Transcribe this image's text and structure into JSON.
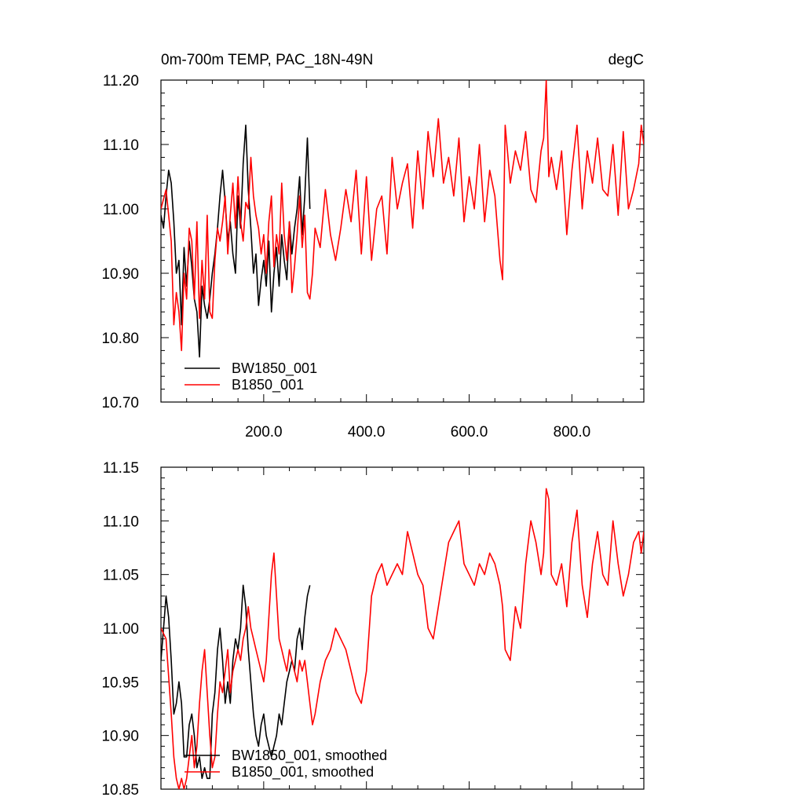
{
  "chart_data": [
    {
      "type": "line",
      "title": "0m-700m TEMP, PAC_18N-49N",
      "units": "degC",
      "xlim": [
        0,
        940
      ],
      "ylim": [
        10.7,
        11.2
      ],
      "xticks": [
        200,
        400,
        600,
        800
      ],
      "xtick_labels": [
        "200.0",
        "400.0",
        "600.0",
        "800.0"
      ],
      "yticks": [
        10.7,
        10.8,
        10.9,
        11.0,
        11.1,
        11.2
      ],
      "ytick_labels": [
        "10.70",
        "10.80",
        "10.90",
        "11.00",
        "11.10",
        "11.20"
      ],
      "legend_position": "bottom-left",
      "series": [
        {
          "name": "BW1850_001",
          "color": "#000000",
          "x": [
            0,
            5,
            10,
            15,
            20,
            25,
            30,
            35,
            40,
            45,
            50,
            55,
            60,
            65,
            70,
            75,
            80,
            85,
            90,
            95,
            100,
            105,
            110,
            115,
            120,
            125,
            130,
            135,
            140,
            145,
            150,
            155,
            160,
            165,
            170,
            175,
            180,
            185,
            190,
            195,
            200,
            205,
            210,
            215,
            220,
            225,
            230,
            235,
            240,
            245,
            250,
            255,
            260,
            265,
            270,
            275,
            280,
            285,
            290
          ],
          "values": [
            10.99,
            10.97,
            11.02,
            11.06,
            11.04,
            10.98,
            10.9,
            10.92,
            10.82,
            10.94,
            10.88,
            10.95,
            10.91,
            10.86,
            10.84,
            10.77,
            10.88,
            10.85,
            10.83,
            10.86,
            10.9,
            10.93,
            10.97,
            11.02,
            11.06,
            11.01,
            10.95,
            10.98,
            10.93,
            10.9,
            11.02,
            10.97,
            11.07,
            11.13,
            11.03,
            10.97,
            10.9,
            10.93,
            10.85,
            10.89,
            10.92,
            10.88,
            10.95,
            10.84,
            10.9,
            10.94,
            10.88,
            10.96,
            10.92,
            10.89,
            10.98,
            10.93,
            10.97,
            11.0,
            11.05,
            10.96,
            11.02,
            11.11,
            11.0
          ]
        },
        {
          "name": "B1850_001",
          "color": "#ff0000",
          "x": [
            0,
            10,
            20,
            25,
            30,
            35,
            40,
            45,
            50,
            55,
            60,
            65,
            70,
            75,
            80,
            85,
            90,
            95,
            100,
            105,
            110,
            115,
            120,
            125,
            130,
            135,
            140,
            145,
            150,
            155,
            160,
            165,
            170,
            175,
            180,
            185,
            190,
            195,
            200,
            205,
            210,
            215,
            220,
            225,
            230,
            235,
            240,
            245,
            250,
            255,
            260,
            265,
            270,
            275,
            280,
            285,
            290,
            295,
            300,
            310,
            320,
            330,
            340,
            350,
            360,
            370,
            380,
            390,
            400,
            410,
            420,
            430,
            440,
            450,
            460,
            470,
            480,
            490,
            500,
            510,
            520,
            530,
            540,
            550,
            560,
            570,
            580,
            590,
            600,
            610,
            620,
            630,
            640,
            650,
            660,
            665,
            670,
            680,
            690,
            700,
            710,
            720,
            730,
            740,
            745,
            750,
            755,
            760,
            770,
            780,
            790,
            800,
            810,
            820,
            830,
            840,
            850,
            860,
            870,
            880,
            890,
            900,
            910,
            920,
            930,
            935,
            940
          ],
          "values": [
            11.0,
            11.03,
            10.95,
            10.82,
            10.87,
            10.84,
            10.78,
            10.9,
            10.86,
            10.97,
            10.95,
            10.86,
            10.98,
            10.83,
            10.92,
            10.86,
            10.99,
            10.84,
            10.83,
            10.92,
            10.97,
            10.95,
            10.98,
            11.02,
            10.93,
            10.99,
            11.04,
            10.97,
            11.05,
            10.98,
            10.95,
            11.01,
            11.0,
            11.08,
            11.02,
            10.99,
            10.97,
            10.93,
            10.96,
            10.9,
            10.98,
            11.02,
            10.91,
            10.96,
            10.93,
            11.04,
            10.96,
            10.92,
            10.98,
            10.87,
            10.91,
            10.96,
            11.02,
            10.94,
            10.99,
            10.87,
            10.86,
            10.9,
            10.97,
            10.94,
            11.03,
            10.96,
            10.92,
            10.97,
            11.03,
            10.98,
            11.06,
            10.93,
            11.05,
            10.92,
            11.0,
            11.02,
            10.93,
            11.08,
            11.0,
            11.04,
            11.07,
            10.97,
            11.09,
            11.0,
            11.12,
            11.05,
            11.14,
            11.04,
            11.08,
            11.02,
            11.11,
            10.98,
            11.05,
            11.0,
            11.1,
            10.98,
            11.06,
            11.02,
            10.92,
            10.89,
            11.13,
            11.04,
            11.09,
            11.06,
            11.12,
            11.03,
            11.01,
            11.09,
            11.11,
            11.2,
            11.05,
            11.08,
            11.03,
            11.09,
            10.96,
            11.06,
            11.13,
            11.0,
            11.09,
            11.04,
            11.11,
            11.03,
            11.02,
            11.1,
            10.99,
            11.12,
            11.0,
            11.03,
            11.07,
            11.13,
            11.1
          ]
        }
      ]
    },
    {
      "type": "line",
      "title": "",
      "xlim": [
        0,
        940
      ],
      "ylim": [
        10.85,
        11.15
      ],
      "xticks": [
        200,
        400,
        600,
        800
      ],
      "xtick_labels": [],
      "yticks": [
        10.85,
        10.9,
        10.95,
        11.0,
        11.05,
        11.1,
        11.15
      ],
      "ytick_labels": [
        "10.85",
        "10.90",
        "10.95",
        "11.00",
        "11.05",
        "11.10",
        "11.15"
      ],
      "legend_position": "bottom-left",
      "series": [
        {
          "name": "BW1850_001, smoothed",
          "color": "#000000",
          "x": [
            0,
            5,
            10,
            15,
            20,
            25,
            30,
            35,
            40,
            45,
            50,
            55,
            60,
            65,
            70,
            75,
            80,
            85,
            90,
            95,
            100,
            105,
            110,
            115,
            120,
            125,
            130,
            135,
            140,
            145,
            150,
            155,
            160,
            165,
            170,
            175,
            180,
            185,
            190,
            195,
            200,
            205,
            210,
            215,
            220,
            225,
            230,
            235,
            240,
            245,
            250,
            255,
            260,
            265,
            270,
            275,
            280,
            285,
            290
          ],
          "values": [
            10.97,
            11.0,
            11.03,
            11.01,
            10.97,
            10.92,
            10.93,
            10.95,
            10.93,
            10.88,
            10.88,
            10.91,
            10.92,
            10.9,
            10.87,
            10.88,
            10.86,
            10.87,
            10.86,
            10.86,
            10.92,
            10.94,
            10.98,
            11.0,
            10.97,
            10.93,
            10.95,
            10.93,
            10.97,
            10.99,
            10.98,
            11.0,
            11.04,
            11.02,
            10.98,
            10.95,
            10.92,
            10.9,
            10.89,
            10.91,
            10.92,
            10.9,
            10.89,
            10.88,
            10.89,
            10.9,
            10.92,
            10.91,
            10.93,
            10.95,
            10.96,
            10.97,
            10.96,
            10.99,
            11.0,
            10.98,
            11.01,
            11.03,
            11.04
          ]
        },
        {
          "name": "B1850_001, smoothed",
          "color": "#ff0000",
          "x": [
            0,
            10,
            20,
            25,
            30,
            35,
            40,
            45,
            50,
            55,
            60,
            65,
            70,
            75,
            80,
            85,
            90,
            95,
            100,
            105,
            110,
            115,
            120,
            125,
            130,
            135,
            140,
            145,
            150,
            155,
            160,
            165,
            170,
            175,
            180,
            185,
            190,
            195,
            200,
            205,
            210,
            215,
            220,
            225,
            230,
            235,
            240,
            245,
            250,
            255,
            260,
            265,
            270,
            275,
            280,
            285,
            290,
            295,
            300,
            310,
            320,
            330,
            340,
            350,
            360,
            370,
            380,
            390,
            400,
            410,
            420,
            430,
            440,
            450,
            460,
            470,
            480,
            490,
            500,
            510,
            520,
            530,
            540,
            550,
            560,
            570,
            580,
            590,
            600,
            610,
            620,
            630,
            640,
            650,
            660,
            665,
            670,
            680,
            690,
            700,
            710,
            720,
            730,
            740,
            745,
            750,
            755,
            760,
            770,
            780,
            790,
            800,
            810,
            820,
            830,
            840,
            850,
            860,
            870,
            880,
            890,
            900,
            910,
            920,
            930,
            935,
            940
          ],
          "values": [
            11.0,
            10.99,
            10.92,
            10.88,
            10.86,
            10.85,
            10.86,
            10.85,
            10.86,
            10.88,
            10.9,
            10.87,
            10.89,
            10.93,
            10.96,
            10.98,
            10.94,
            10.9,
            10.87,
            10.88,
            10.92,
            10.95,
            10.94,
            10.96,
            10.98,
            10.94,
            10.96,
            10.97,
            10.98,
            10.97,
            10.99,
            11.0,
            11.02,
            11.0,
            10.99,
            10.98,
            10.97,
            10.96,
            10.95,
            10.97,
            11.01,
            11.05,
            11.07,
            11.03,
            10.99,
            10.98,
            10.97,
            10.96,
            10.98,
            10.97,
            10.96,
            10.95,
            10.97,
            10.96,
            10.97,
            10.95,
            10.93,
            10.91,
            10.92,
            10.95,
            10.97,
            10.98,
            11.0,
            10.99,
            10.98,
            10.96,
            10.94,
            10.93,
            10.96,
            11.03,
            11.05,
            11.06,
            11.04,
            11.05,
            11.06,
            11.05,
            11.09,
            11.07,
            11.05,
            11.04,
            11.0,
            10.99,
            11.02,
            11.05,
            11.08,
            11.09,
            11.1,
            11.06,
            11.05,
            11.04,
            11.06,
            11.05,
            11.07,
            11.06,
            11.04,
            11.02,
            10.98,
            10.97,
            11.02,
            11.0,
            11.06,
            11.1,
            11.08,
            11.05,
            11.07,
            11.13,
            11.12,
            11.05,
            11.04,
            11.06,
            11.02,
            11.08,
            11.11,
            11.04,
            11.01,
            11.06,
            11.09,
            11.05,
            11.04,
            11.1,
            11.06,
            11.03,
            11.05,
            11.08,
            11.09,
            11.07,
            11.09
          ]
        }
      ]
    }
  ]
}
